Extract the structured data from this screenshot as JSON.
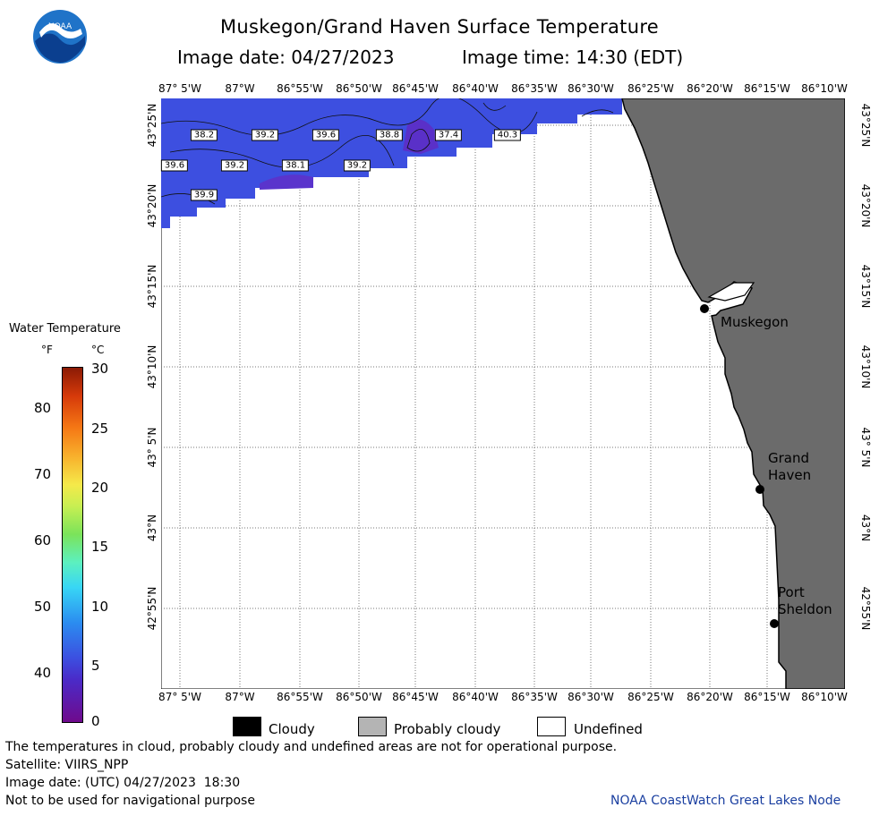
{
  "header": {
    "title": "Muskegon/Grand Haven Surface Temperature",
    "image_date": "Image date: 04/27/2023",
    "image_time": "Image time: 14:30 (EDT)"
  },
  "logo": {
    "text": "NOAA",
    "icon": "noaa-logo-icon"
  },
  "map": {
    "lon_ticks": [
      "87° 5'W",
      "87°W",
      "86°55'W",
      "86°50'W",
      "86°45'W",
      "86°40'W",
      "86°35'W",
      "86°30'W",
      "86°25'W",
      "86°20'W",
      "86°15'W",
      "86°10'W"
    ],
    "lat_ticks": [
      "43°25'N",
      "43°20'N",
      "43°15'N",
      "43°10'N",
      "43° 5'N",
      "43°N",
      "42°55'N"
    ],
    "temperature_labels": [
      {
        "value": "38.2"
      },
      {
        "value": "39.2"
      },
      {
        "value": "39.6"
      },
      {
        "value": "38.8"
      },
      {
        "value": "37.4"
      },
      {
        "value": "40.3"
      },
      {
        "value": "39.6"
      },
      {
        "value": "39.2"
      },
      {
        "value": "38.1"
      },
      {
        "value": "39.2"
      },
      {
        "value": "39.9"
      }
    ],
    "cities": [
      {
        "name": "Muskegon"
      },
      {
        "name": "Grand\nHaven"
      },
      {
        "name": "Port\nSheldon"
      }
    ],
    "colors": {
      "water": "#3d4fe0",
      "land": "#6b6b6b",
      "undefined": "#ffffff"
    }
  },
  "legend": {
    "title": "Water Temperature",
    "f_unit": "°F",
    "c_unit": "°C",
    "f_ticks": [
      "80",
      "70",
      "60",
      "50",
      "40"
    ],
    "c_ticks": [
      "30",
      "25",
      "20",
      "15",
      "10",
      "5",
      "0"
    ]
  },
  "cloud_key": [
    {
      "label": "Cloudy",
      "color": "#000000"
    },
    {
      "label": "Probably cloudy",
      "color": "#b4b4b4"
    },
    {
      "label": "Undefined",
      "color": "#ffffff"
    }
  ],
  "footer": {
    "disclaimer": "The temperatures in cloud, probably cloudy and undefined areas are not for operational purpose.",
    "satellite": "Satellite: VIIRS_NPP",
    "utc_date": "Image date: (UTC) 04/27/2023  18:30",
    "nav_warning": "Not to be used for navigational purpose",
    "credit": "NOAA CoastWatch Great Lakes Node"
  }
}
